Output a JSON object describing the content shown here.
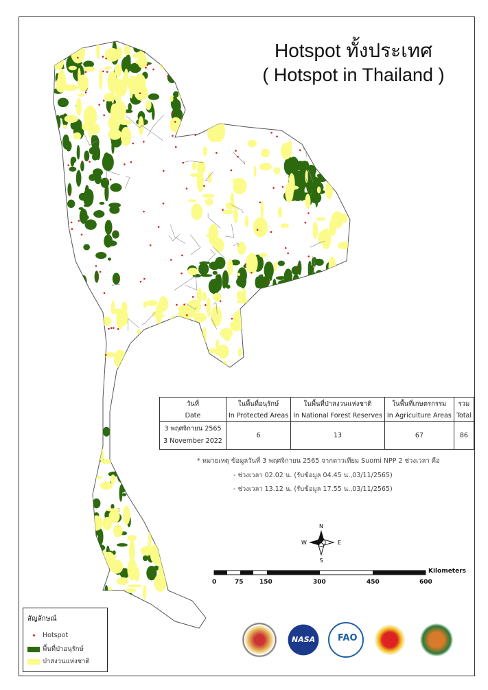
{
  "title": {
    "line1": "Hotspot ทั้งประเทศ",
    "line2": "( Hotspot in Thailand )"
  },
  "table": {
    "headers_th": [
      "วันที่",
      "ในพื้นที่อนุรักษ์",
      "ในพื้นที่ป่าสงวนแห่งชาติ",
      "ในพื้นที่เกษตรกรรม",
      "รวม"
    ],
    "headers_en": [
      "Date",
      "In Protected Areas",
      "In National Forest Reserves",
      "In Agriculture Areas",
      "Total"
    ],
    "row": {
      "date_th": "3 พฤศจิกายน 2565",
      "date_en": "3 November 2022",
      "protected": "6",
      "forest_reserves": "13",
      "agriculture": "67",
      "total": "86"
    }
  },
  "notes": [
    "* หมายเหตุ ข้อมูลวันที่ 3 พฤศจิกายน 2565 จากดาวเทียม Suomi NPP 2 ช่วงเวลา คือ",
    "- ช่วงเวลา 02.02 น. (รับข้อมูล 04.45 น.,03/11/2565)",
    "- ช่วงเวลา 13.12 น. (รับข้อมูล 17.55 น.,03/11/2565)"
  ],
  "compass": {
    "n": "N",
    "s": "S",
    "e": "E",
    "w": "W"
  },
  "scale": {
    "unit": "Kilometers",
    "ticks": [
      "0",
      "75",
      "150",
      "300",
      "450",
      "600"
    ]
  },
  "legend": {
    "title": "สัญลักษณ์",
    "items": [
      {
        "label": "Hotspot",
        "color": "#d02020",
        "kind": "dot"
      },
      {
        "label": "พื้นที่ป่าอนุรักษ์",
        "color": "#2d6a0f",
        "kind": "box"
      },
      {
        "label": "ป่าสงวนแห่งชาติ",
        "color": "#fbfb8a",
        "kind": "box"
      }
    ]
  },
  "logos": [
    "department-seal",
    "nasa",
    "fao",
    "university-of-maryland",
    "forest-fire-control"
  ],
  "colors": {
    "protected": "#2d6a0f",
    "reserve": "#fbfb8a",
    "hotspot": "#d02020",
    "boundary": "#666666"
  }
}
